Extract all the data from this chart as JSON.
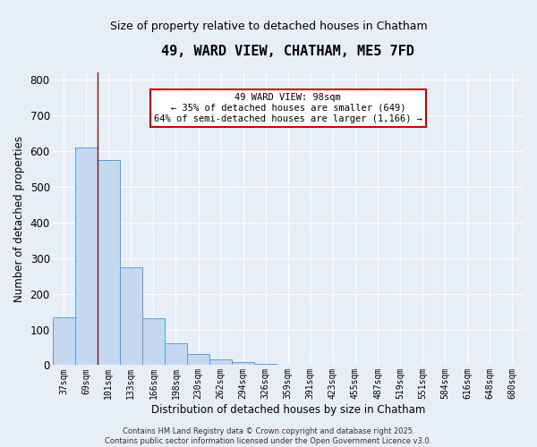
{
  "title": "49, WARD VIEW, CHATHAM, ME5 7FD",
  "subtitle": "Size of property relative to detached houses in Chatham",
  "xlabel": "Distribution of detached houses by size in Chatham",
  "ylabel": "Number of detached properties",
  "footer": "Contains HM Land Registry data © Crown copyright and database right 2025.\nContains public sector information licensed under the Open Government Licence v3.0.",
  "bins": [
    "37sqm",
    "69sqm",
    "101sqm",
    "133sqm",
    "166sqm",
    "198sqm",
    "230sqm",
    "262sqm",
    "294sqm",
    "326sqm",
    "359sqm",
    "391sqm",
    "423sqm",
    "455sqm",
    "487sqm",
    "519sqm",
    "551sqm",
    "584sqm",
    "616sqm",
    "648sqm",
    "680sqm"
  ],
  "counts": [
    133,
    610,
    575,
    275,
    132,
    62,
    30,
    15,
    8,
    3,
    2,
    1,
    1,
    0,
    1,
    0,
    0,
    0,
    0,
    1,
    0
  ],
  "bar_color": "#c5d8f0",
  "bar_edge_color": "#5a9fd4",
  "bg_color": "#e8eef8",
  "grid_color": "#ffffff",
  "vline_x": 1.5,
  "vline_color": "#aa0000",
  "annotation_text": "49 WARD VIEW: 98sqm\n← 35% of detached houses are smaller (649)\n64% of semi-detached houses are larger (1,166) →",
  "annotation_box_color": "#ffffff",
  "annotation_box_edge": "#cc0000",
  "ylim": [
    0,
    820
  ],
  "yticks": [
    0,
    100,
    200,
    300,
    400,
    500,
    600,
    700,
    800
  ]
}
